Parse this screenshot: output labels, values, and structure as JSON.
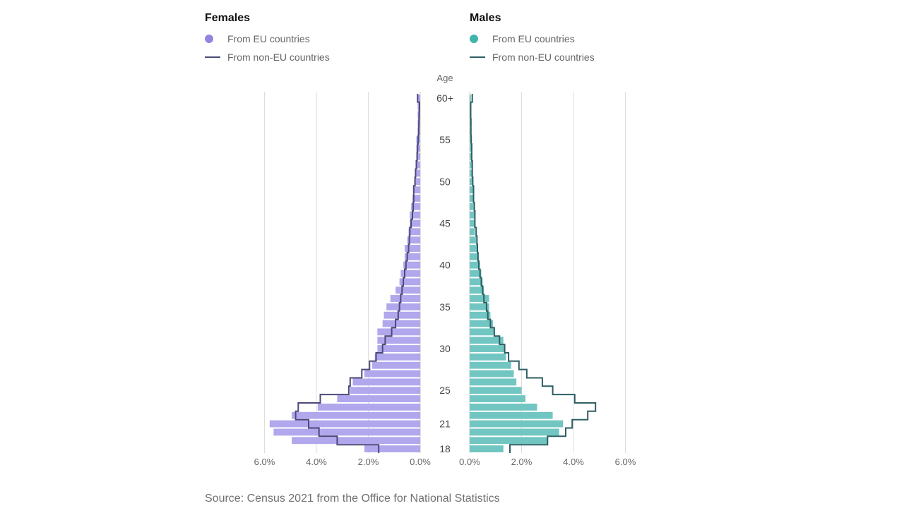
{
  "colors": {
    "female_bar": "#b0a7ec",
    "female_line": "#4b4a78",
    "male_bar": "#72c6c2",
    "male_line": "#2e5f64",
    "grid": "#dddddd",
    "female_dot": "#9185e0",
    "male_dot": "#3fb5ae"
  },
  "legend": {
    "females_title": "Females",
    "males_title": "Males",
    "eu_label": "From EU countries",
    "noneu_label": "From non-EU countries"
  },
  "source": "Source: Census 2021 from the Office for National Statistics",
  "chart_data": {
    "type": "bar",
    "ylabel": "Age",
    "age_categories": [
      "18",
      "19",
      "20",
      "21",
      "22",
      "23",
      "24",
      "25",
      "26",
      "27",
      "28",
      "29",
      "30",
      "31",
      "32",
      "33",
      "34",
      "35",
      "36",
      "37",
      "38",
      "39",
      "40",
      "41",
      "42",
      "43",
      "44",
      "45",
      "46",
      "47",
      "48",
      "49",
      "50",
      "51",
      "52",
      "53",
      "54",
      "55",
      "56",
      "57",
      "58",
      "59",
      "60+"
    ],
    "age_tick_labels": {
      "18": "18",
      "21": "21",
      "25": "25",
      "30": "30",
      "35": "35",
      "40": "40",
      "45": "45",
      "50": "50",
      "55": "55",
      "60+": "60+"
    },
    "xlim": [
      0,
      6
    ],
    "x_ticks": [
      "6.0%",
      "4.0%",
      "2.0%",
      "0.0%"
    ],
    "x_ticks_right": [
      "0.0%",
      "2.0%",
      "4.0%",
      "6.0%"
    ],
    "series": [
      {
        "name": "Females - From EU countries",
        "side": "female",
        "style": "bar",
        "values": [
          2.15,
          4.95,
          5.65,
          5.8,
          4.95,
          3.95,
          3.2,
          2.7,
          2.6,
          2.15,
          1.85,
          1.75,
          1.65,
          1.65,
          1.65,
          1.45,
          1.4,
          1.3,
          1.15,
          0.95,
          0.8,
          0.75,
          0.65,
          0.6,
          0.6,
          0.5,
          0.45,
          0.4,
          0.4,
          0.35,
          0.3,
          0.25,
          0.2,
          0.2,
          0.15,
          0.15,
          0.15,
          0.15,
          0.1,
          0.1,
          0.1,
          0.1,
          0.1
        ]
      },
      {
        "name": "Females - From non-EU countries",
        "side": "female",
        "style": "step",
        "values": [
          1.6,
          3.2,
          3.9,
          4.3,
          4.8,
          4.7,
          3.85,
          2.75,
          2.7,
          2.25,
          1.95,
          1.7,
          1.45,
          1.35,
          1.1,
          0.95,
          0.85,
          0.8,
          0.75,
          0.7,
          0.65,
          0.6,
          0.55,
          0.5,
          0.45,
          0.42,
          0.4,
          0.35,
          0.3,
          0.27,
          0.25,
          0.25,
          0.2,
          0.18,
          0.15,
          0.12,
          0.1,
          0.08,
          0.06,
          0.05,
          0.04,
          0.03,
          0.1
        ]
      },
      {
        "name": "Males - From EU countries",
        "side": "male",
        "style": "bar",
        "values": [
          1.3,
          3.0,
          3.45,
          3.6,
          3.2,
          2.6,
          2.15,
          2.0,
          1.8,
          1.7,
          1.6,
          1.4,
          1.35,
          1.3,
          0.95,
          0.9,
          0.8,
          0.75,
          0.75,
          0.55,
          0.5,
          0.45,
          0.4,
          0.35,
          0.3,
          0.25,
          0.2,
          0.2,
          0.2,
          0.15,
          0.15,
          0.15,
          0.1,
          0.1,
          0.1,
          0.1,
          0.1,
          0.05,
          0.05,
          0.05,
          0.05,
          0.05,
          0.05
        ]
      },
      {
        "name": "Males - From non-EU countries",
        "side": "male",
        "style": "step",
        "values": [
          1.55,
          3.0,
          3.7,
          3.95,
          4.55,
          4.85,
          4.05,
          3.2,
          2.8,
          2.2,
          1.9,
          1.5,
          1.35,
          1.15,
          0.95,
          0.8,
          0.7,
          0.65,
          0.55,
          0.5,
          0.45,
          0.4,
          0.35,
          0.32,
          0.3,
          0.28,
          0.25,
          0.2,
          0.2,
          0.18,
          0.15,
          0.15,
          0.12,
          0.1,
          0.1,
          0.08,
          0.08,
          0.06,
          0.05,
          0.05,
          0.04,
          0.04,
          0.1
        ]
      }
    ],
    "grid": true,
    "legend_position": "top"
  }
}
